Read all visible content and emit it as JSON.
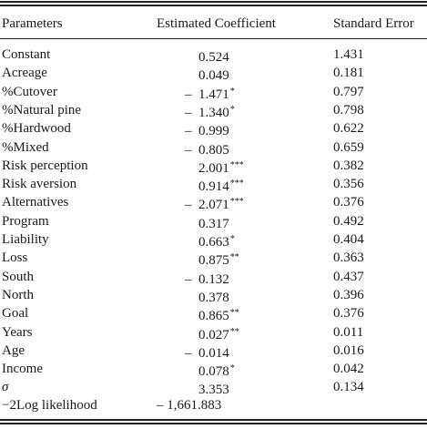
{
  "table": {
    "headers": [
      "Parameters",
      "Estimated Coefficient",
      "Standard Error"
    ],
    "rows": [
      {
        "param": "Constant",
        "sign": "",
        "coef": "0.524",
        "stars": "",
        "se": "1.431"
      },
      {
        "param": "Acreage",
        "sign": "",
        "coef": "0.049",
        "stars": "",
        "se": "0.181"
      },
      {
        "param": "%Cutover",
        "sign": "–",
        "coef": "1.471",
        "stars": "*",
        "se": "0.797"
      },
      {
        "param": "%Natural pine",
        "sign": "–",
        "coef": "1.340",
        "stars": "*",
        "se": "0.798"
      },
      {
        "param": "%Hardwood",
        "sign": "–",
        "coef": "0.999",
        "stars": "",
        "se": "0.622"
      },
      {
        "param": "%Mixed",
        "sign": "–",
        "coef": "0.805",
        "stars": "",
        "se": "0.659"
      },
      {
        "param": "Risk perception",
        "sign": "",
        "coef": "2.001",
        "stars": "***",
        "se": "0.382"
      },
      {
        "param": "Risk aversion",
        "sign": "",
        "coef": "0.914",
        "stars": "***",
        "se": "0.356"
      },
      {
        "param": "Alternatives",
        "sign": "–",
        "coef": "2.071",
        "stars": "***",
        "se": "0.376"
      },
      {
        "param": "Program",
        "sign": "",
        "coef": "0.317",
        "stars": "",
        "se": "0.492"
      },
      {
        "param": "Liability",
        "sign": "",
        "coef": "0.663",
        "stars": "*",
        "se": "0.404"
      },
      {
        "param": "Loss",
        "sign": "",
        "coef": "0.875",
        "stars": "**",
        "se": "0.363"
      },
      {
        "param": "South",
        "sign": "–",
        "coef": "0.132",
        "stars": "",
        "se": "0.437"
      },
      {
        "param": "North",
        "sign": "",
        "coef": "0.378",
        "stars": "",
        "se": "0.396"
      },
      {
        "param": "Goal",
        "sign": "",
        "coef": "0.865",
        "stars": "**",
        "se": "0.376"
      },
      {
        "param": "Years",
        "sign": "",
        "coef": "0.027",
        "stars": "**",
        "se": "0.011"
      },
      {
        "param": "Age",
        "sign": "–",
        "coef": "0.014",
        "stars": "",
        "se": "0.016"
      },
      {
        "param": "Income",
        "sign": "",
        "coef": "0.078",
        "stars": "*",
        "se": "0.042"
      },
      {
        "param": "σ",
        "sign": "",
        "coef": "3.353",
        "stars": "",
        "se": "0.134"
      }
    ],
    "footer": {
      "param": "−2Log likelihood",
      "value": "– 1,661.883"
    }
  }
}
